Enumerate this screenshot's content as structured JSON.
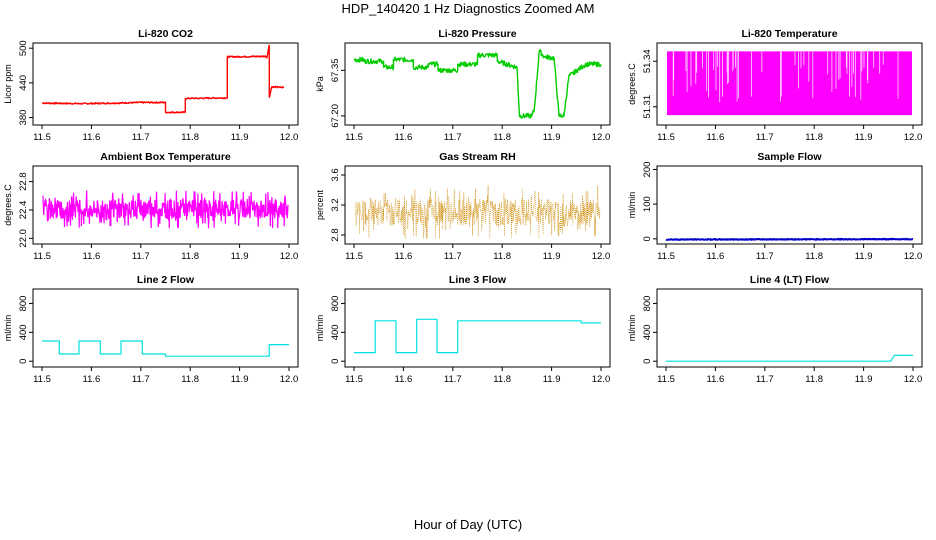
{
  "figure": {
    "title": "HDP_140420  1 Hz Diagnostics Zoomed AM",
    "xlabel": "Hour of Day (UTC)"
  },
  "chart_data": [
    {
      "id": "co2",
      "type": "line",
      "title": "Li-820 CO2",
      "ylabel": "Licor ppm",
      "color": "#ff0000",
      "xlim": [
        11.5,
        12.0
      ],
      "ylim": [
        367,
        509
      ],
      "xticks": [
        "11.5",
        "11.6",
        "11.7",
        "11.8",
        "11.9",
        "12.0"
      ],
      "yticks": [
        380,
        440,
        500
      ],
      "noise": 1.2,
      "series": [
        {
          "name": "CO2",
          "x": [
            11.5,
            11.58,
            11.65,
            11.7,
            11.75,
            11.7501,
            11.79,
            11.7901,
            11.875,
            11.8751,
            11.955,
            11.9551,
            11.96,
            11.9601,
            11.965,
            11.99
          ],
          "y": [
            405,
            404,
            405,
            406,
            406,
            389,
            389,
            413,
            414,
            485,
            486,
            483,
            505,
            415,
            433,
            432
          ]
        }
      ]
    },
    {
      "id": "pressure",
      "type": "line",
      "title": "Li-820 Pressure",
      "ylabel": "kPa",
      "color": "#00cc00",
      "xlim": [
        11.5,
        12.0
      ],
      "ylim": [
        67.17,
        67.44
      ],
      "xticks": [
        "11.5",
        "11.6",
        "11.7",
        "11.8",
        "11.9",
        "12.0"
      ],
      "yticks": [
        "67.20",
        "67.35"
      ],
      "noise": 0.008,
      "series": [
        {
          "name": "Pressure",
          "x": [
            11.5,
            11.52,
            11.52,
            11.56,
            11.56,
            11.58,
            11.58,
            11.62,
            11.62,
            11.65,
            11.65,
            11.67,
            11.67,
            11.71,
            11.71,
            11.75,
            11.75,
            11.79,
            11.79,
            11.83,
            11.835,
            11.86,
            11.865,
            11.875,
            11.885,
            11.905,
            11.915,
            11.925,
            11.935,
            11.96,
            11.97,
            12.0
          ],
          "y": [
            67.385,
            67.385,
            67.38,
            67.38,
            67.36,
            67.36,
            67.385,
            67.385,
            67.36,
            67.36,
            67.37,
            67.37,
            67.35,
            67.35,
            67.37,
            67.37,
            67.4,
            67.4,
            67.38,
            67.36,
            67.2,
            67.2,
            67.22,
            67.415,
            67.395,
            67.39,
            67.2,
            67.2,
            67.33,
            67.36,
            67.37,
            67.37
          ]
        }
      ]
    },
    {
      "id": "licor_temp",
      "type": "area",
      "title": "Li-820 Temperature",
      "ylabel": "degrees.C",
      "color": "#ff00ff",
      "xlim": [
        11.5,
        12.0
      ],
      "ylim": [
        51.298,
        51.352
      ],
      "xticks": [
        "11.5",
        "11.6",
        "11.7",
        "11.8",
        "11.9",
        "12.0"
      ],
      "yticks": [
        "51.31",
        "51.34"
      ],
      "band": [
        51.3045,
        51.3465
      ]
    },
    {
      "id": "ambient",
      "type": "line",
      "title": "Ambient Box Temperature",
      "ylabel": "degrees.C",
      "color": "#ff00ff",
      "xlim": [
        11.5,
        12.0
      ],
      "ylim": [
        21.92,
        23.02
      ],
      "xticks": [
        "11.5",
        "11.6",
        "11.7",
        "11.8",
        "11.9",
        "12.0"
      ],
      "yticks": [
        "22.0",
        "22.4",
        "22.8"
      ],
      "noise_band": {
        "center": 22.41,
        "half_range": 0.27,
        "lw": 1.2
      },
      "series": []
    },
    {
      "id": "rh",
      "type": "scatter",
      "title": "Gas Stream RH",
      "ylabel": "percent",
      "color": "#cc8800",
      "xlim": [
        11.5,
        12.0
      ],
      "ylim": [
        2.68,
        3.72
      ],
      "xticks": [
        "11.5",
        "11.6",
        "11.7",
        "11.8",
        "11.9",
        "12.0"
      ],
      "yticks": [
        "2.8",
        "3.2",
        "3.6"
      ],
      "noise_band": {
        "center": 3.1,
        "half_range": 0.36,
        "lw": 0.6,
        "dash": "1,1"
      },
      "series": []
    },
    {
      "id": "sample_flow",
      "type": "line",
      "title": "Sample Flow",
      "ylabel": "ml/min",
      "color": "#0000cc",
      "xlim": [
        11.5,
        12.0
      ],
      "ylim": [
        -15,
        210
      ],
      "xticks": [
        "11.5",
        "11.6",
        "11.7",
        "11.8",
        "11.9",
        "12.0"
      ],
      "yticks": [
        0,
        100,
        200
      ],
      "noise": 1.2,
      "lw": 2,
      "series": [
        {
          "name": "Sample",
          "x": [
            11.5,
            12.0
          ],
          "y": [
            -2,
            -1
          ]
        }
      ]
    },
    {
      "id": "line2",
      "type": "line",
      "title": "Line 2 Flow",
      "ylabel": "ml/min",
      "color": "#00e0e0",
      "xlim": [
        11.5,
        12.0
      ],
      "ylim": [
        -80,
        1000
      ],
      "xticks": [
        "11.5",
        "11.6",
        "11.7",
        "11.8",
        "11.9",
        "12.0"
      ],
      "yticks": [
        0,
        400,
        800
      ],
      "series": [
        {
          "name": "Line 2",
          "x": [
            11.5,
            11.535,
            11.535,
            11.575,
            11.575,
            11.618,
            11.618,
            11.66,
            11.66,
            11.703,
            11.703,
            11.75,
            11.75,
            11.96,
            11.96,
            12.0
          ],
          "y": [
            280,
            280,
            100,
            100,
            280,
            280,
            100,
            100,
            280,
            280,
            100,
            100,
            70,
            70,
            230,
            230
          ]
        }
      ]
    },
    {
      "id": "line3",
      "type": "line",
      "title": "Line 3 Flow",
      "ylabel": "ml/min",
      "color": "#00e0e0",
      "xlim": [
        11.5,
        12.0
      ],
      "ylim": [
        -80,
        1000
      ],
      "xticks": [
        "11.5",
        "11.6",
        "11.7",
        "11.8",
        "11.9",
        "12.0"
      ],
      "yticks": [
        0,
        400,
        800
      ],
      "series": [
        {
          "name": "Line 3",
          "x": [
            11.5,
            11.543,
            11.543,
            11.585,
            11.585,
            11.627,
            11.627,
            11.668,
            11.668,
            11.71,
            11.71,
            11.96,
            11.96,
            12.0
          ],
          "y": [
            120,
            120,
            560,
            560,
            120,
            120,
            580,
            580,
            120,
            120,
            560,
            560,
            530,
            530
          ]
        }
      ]
    },
    {
      "id": "line4",
      "type": "line",
      "title": "Line 4 (LT) Flow",
      "ylabel": "ml/min",
      "color": "#00e0e0",
      "xlim": [
        11.5,
        12.0
      ],
      "ylim": [
        -80,
        1000
      ],
      "xticks": [
        "11.5",
        "11.6",
        "11.7",
        "11.8",
        "11.9",
        "12.0"
      ],
      "yticks": [
        0,
        400,
        800
      ],
      "series": [
        {
          "name": "Line 4",
          "x": [
            11.5,
            11.955,
            11.962,
            12.0
          ],
          "y": [
            0,
            0,
            80,
            80
          ]
        }
      ]
    }
  ]
}
